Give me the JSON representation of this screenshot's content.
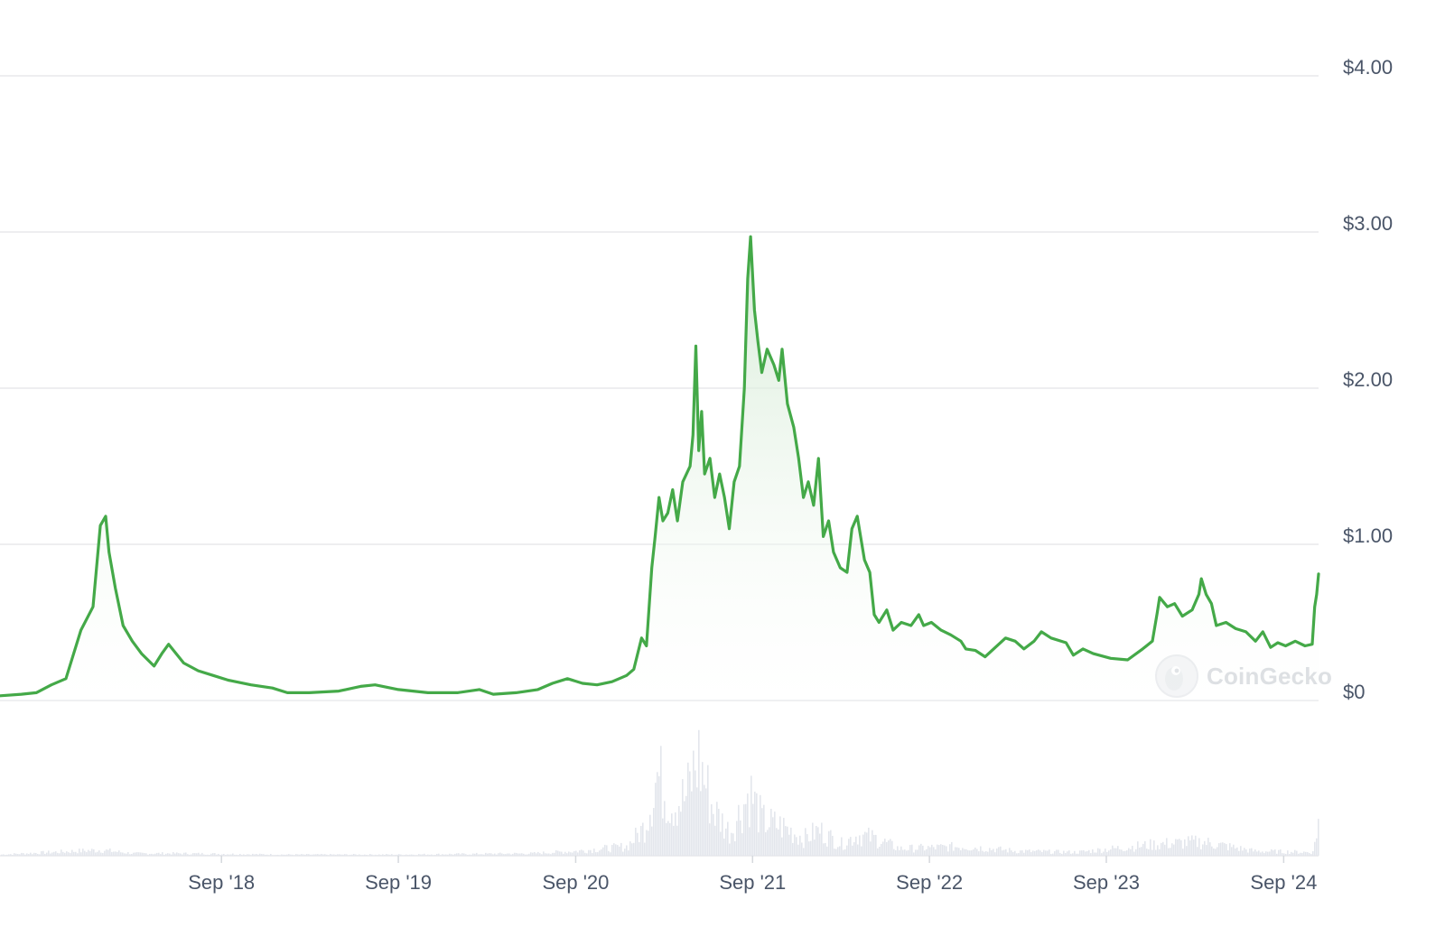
{
  "watermark": {
    "text": "CoinGecko"
  },
  "colors": {
    "line": "#44a948",
    "area_top": "#dff0df",
    "volume": "#e3e6ec",
    "grid": "#e8e9ec",
    "tick_text": "#4a5568"
  },
  "chart_data": {
    "type": "area",
    "y_axis": {
      "position": "right",
      "ticks": [
        "$0",
        "$1.00",
        "$2.00",
        "$3.00",
        "$4.00"
      ],
      "tick_values": [
        0,
        1,
        2,
        3,
        4
      ],
      "ylim": [
        0,
        4.05
      ]
    },
    "x_axis": {
      "ticks": [
        "Sep '18",
        "Sep '19",
        "Sep '20",
        "Sep '21",
        "Sep '22",
        "Sep '23",
        "Sep '24"
      ],
      "tick_dates": [
        "2018-09-01",
        "2019-09-01",
        "2020-09-01",
        "2021-09-01",
        "2022-09-01",
        "2023-09-01",
        "2024-09-01"
      ],
      "xlim": [
        "2017-06-01",
        "2024-11-12"
      ]
    },
    "grid": true,
    "series": [
      {
        "values": [
          [
            "2017-06-01",
            0.03
          ],
          [
            "2017-07-15",
            0.04
          ],
          [
            "2017-08-15",
            0.05
          ],
          [
            "2017-09-15",
            0.1
          ],
          [
            "2017-10-15",
            0.14
          ],
          [
            "2017-11-15",
            0.45
          ],
          [
            "2017-12-10",
            0.6
          ],
          [
            "2017-12-25",
            1.12
          ],
          [
            "2018-01-05",
            1.18
          ],
          [
            "2018-01-12",
            0.95
          ],
          [
            "2018-01-25",
            0.72
          ],
          [
            "2018-02-10",
            0.48
          ],
          [
            "2018-03-01",
            0.38
          ],
          [
            "2018-03-20",
            0.3
          ],
          [
            "2018-04-15",
            0.22
          ],
          [
            "2018-05-01",
            0.3
          ],
          [
            "2018-05-15",
            0.36
          ],
          [
            "2018-06-15",
            0.24
          ],
          [
            "2018-07-15",
            0.19
          ],
          [
            "2018-08-15",
            0.16
          ],
          [
            "2018-09-15",
            0.13
          ],
          [
            "2018-11-01",
            0.1
          ],
          [
            "2018-12-15",
            0.08
          ],
          [
            "2019-01-15",
            0.05
          ],
          [
            "2019-03-01",
            0.05
          ],
          [
            "2019-05-01",
            0.06
          ],
          [
            "2019-06-15",
            0.09
          ],
          [
            "2019-07-15",
            0.1
          ],
          [
            "2019-09-01",
            0.07
          ],
          [
            "2019-11-01",
            0.05
          ],
          [
            "2020-01-01",
            0.05
          ],
          [
            "2020-02-15",
            0.07
          ],
          [
            "2020-03-15",
            0.04
          ],
          [
            "2020-05-01",
            0.05
          ],
          [
            "2020-06-15",
            0.07
          ],
          [
            "2020-07-15",
            0.11
          ],
          [
            "2020-08-15",
            0.14
          ],
          [
            "2020-09-15",
            0.11
          ],
          [
            "2020-10-15",
            0.1
          ],
          [
            "2020-11-15",
            0.12
          ],
          [
            "2020-12-15",
            0.16
          ],
          [
            "2020-12-30",
            0.2
          ],
          [
            "2021-01-15",
            0.4
          ],
          [
            "2021-01-25",
            0.35
          ],
          [
            "2021-02-05",
            0.85
          ],
          [
            "2021-02-12",
            1.05
          ],
          [
            "2021-02-20",
            1.3
          ],
          [
            "2021-02-28",
            1.15
          ],
          [
            "2021-03-10",
            1.2
          ],
          [
            "2021-03-20",
            1.35
          ],
          [
            "2021-03-30",
            1.15
          ],
          [
            "2021-04-10",
            1.4
          ],
          [
            "2021-04-25",
            1.5
          ],
          [
            "2021-05-01",
            1.7
          ],
          [
            "2021-05-07",
            2.27
          ],
          [
            "2021-05-13",
            1.6
          ],
          [
            "2021-05-19",
            1.85
          ],
          [
            "2021-05-25",
            1.45
          ],
          [
            "2021-06-05",
            1.55
          ],
          [
            "2021-06-15",
            1.3
          ],
          [
            "2021-06-25",
            1.45
          ],
          [
            "2021-07-05",
            1.3
          ],
          [
            "2021-07-15",
            1.1
          ],
          [
            "2021-07-25",
            1.4
          ],
          [
            "2021-08-05",
            1.5
          ],
          [
            "2021-08-15",
            2.0
          ],
          [
            "2021-08-22",
            2.7
          ],
          [
            "2021-08-28",
            2.97
          ],
          [
            "2021-09-05",
            2.5
          ],
          [
            "2021-09-12",
            2.3
          ],
          [
            "2021-09-20",
            2.1
          ],
          [
            "2021-10-01",
            2.25
          ],
          [
            "2021-10-15",
            2.15
          ],
          [
            "2021-10-25",
            2.05
          ],
          [
            "2021-11-01",
            2.25
          ],
          [
            "2021-11-12",
            1.9
          ],
          [
            "2021-11-25",
            1.75
          ],
          [
            "2021-12-05",
            1.55
          ],
          [
            "2021-12-15",
            1.3
          ],
          [
            "2021-12-25",
            1.4
          ],
          [
            "2022-01-05",
            1.25
          ],
          [
            "2022-01-15",
            1.55
          ],
          [
            "2022-01-25",
            1.05
          ],
          [
            "2022-02-05",
            1.15
          ],
          [
            "2022-02-15",
            0.95
          ],
          [
            "2022-03-01",
            0.85
          ],
          [
            "2022-03-15",
            0.82
          ],
          [
            "2022-03-25",
            1.1
          ],
          [
            "2022-04-05",
            1.18
          ],
          [
            "2022-04-20",
            0.9
          ],
          [
            "2022-05-01",
            0.82
          ],
          [
            "2022-05-10",
            0.55
          ],
          [
            "2022-05-20",
            0.5
          ],
          [
            "2022-06-05",
            0.58
          ],
          [
            "2022-06-18",
            0.45
          ],
          [
            "2022-07-05",
            0.5
          ],
          [
            "2022-07-25",
            0.48
          ],
          [
            "2022-08-10",
            0.55
          ],
          [
            "2022-08-20",
            0.48
          ],
          [
            "2022-09-05",
            0.5
          ],
          [
            "2022-09-25",
            0.45
          ],
          [
            "2022-10-15",
            0.42
          ],
          [
            "2022-11-05",
            0.38
          ],
          [
            "2022-11-15",
            0.33
          ],
          [
            "2022-12-05",
            0.32
          ],
          [
            "2022-12-25",
            0.28
          ],
          [
            "2023-01-15",
            0.34
          ],
          [
            "2023-02-05",
            0.4
          ],
          [
            "2023-02-25",
            0.38
          ],
          [
            "2023-03-15",
            0.33
          ],
          [
            "2023-04-05",
            0.38
          ],
          [
            "2023-04-20",
            0.44
          ],
          [
            "2023-05-10",
            0.4
          ],
          [
            "2023-06-10",
            0.37
          ],
          [
            "2023-06-25",
            0.29
          ],
          [
            "2023-07-15",
            0.33
          ],
          [
            "2023-08-05",
            0.3
          ],
          [
            "2023-09-10",
            0.27
          ],
          [
            "2023-10-15",
            0.26
          ],
          [
            "2023-11-15",
            0.33
          ],
          [
            "2023-12-05",
            0.38
          ],
          [
            "2023-12-15",
            0.56
          ],
          [
            "2023-12-20",
            0.66
          ],
          [
            "2024-01-05",
            0.6
          ],
          [
            "2024-01-20",
            0.62
          ],
          [
            "2024-02-05",
            0.54
          ],
          [
            "2024-02-25",
            0.58
          ],
          [
            "2024-03-10",
            0.68
          ],
          [
            "2024-03-15",
            0.78
          ],
          [
            "2024-03-25",
            0.68
          ],
          [
            "2024-04-05",
            0.62
          ],
          [
            "2024-04-15",
            0.48
          ],
          [
            "2024-05-05",
            0.5
          ],
          [
            "2024-05-25",
            0.46
          ],
          [
            "2024-06-15",
            0.44
          ],
          [
            "2024-07-05",
            0.38
          ],
          [
            "2024-07-20",
            0.44
          ],
          [
            "2024-08-05",
            0.34
          ],
          [
            "2024-08-20",
            0.37
          ],
          [
            "2024-09-05",
            0.35
          ],
          [
            "2024-09-25",
            0.38
          ],
          [
            "2024-10-15",
            0.35
          ],
          [
            "2024-10-30",
            0.36
          ],
          [
            "2024-11-04",
            0.6
          ],
          [
            "2024-11-08",
            0.68
          ],
          [
            "2024-11-12",
            0.81
          ]
        ]
      }
    ],
    "volume": {
      "values": [
        [
          "2017-06-01",
          0.01
        ],
        [
          "2017-12-25",
          0.05
        ],
        [
          "2018-03-01",
          0.02
        ],
        [
          "2018-06-01",
          0.02
        ],
        [
          "2019-01-01",
          0.01
        ],
        [
          "2019-09-01",
          0.01
        ],
        [
          "2020-06-01",
          0.02
        ],
        [
          "2020-09-01",
          0.04
        ],
        [
          "2020-12-15",
          0.08
        ],
        [
          "2021-01-20",
          0.25
        ],
        [
          "2021-02-15",
          0.7
        ],
        [
          "2021-03-15",
          0.45
        ],
        [
          "2021-04-15",
          0.5
        ],
        [
          "2021-05-10",
          0.85
        ],
        [
          "2021-06-10",
          0.4
        ],
        [
          "2021-07-15",
          0.2
        ],
        [
          "2021-08-25",
          0.55
        ],
        [
          "2021-09-20",
          0.3
        ],
        [
          "2021-11-01",
          0.25
        ],
        [
          "2021-12-15",
          0.15
        ],
        [
          "2022-01-15",
          0.22
        ],
        [
          "2022-03-01",
          0.1
        ],
        [
          "2022-04-05",
          0.18
        ],
        [
          "2022-05-10",
          0.15
        ],
        [
          "2022-07-01",
          0.06
        ],
        [
          "2022-11-10",
          0.08
        ],
        [
          "2023-03-01",
          0.04
        ],
        [
          "2023-07-01",
          0.03
        ],
        [
          "2023-12-15",
          0.1
        ],
        [
          "2024-03-15",
          0.12
        ],
        [
          "2024-07-01",
          0.04
        ],
        [
          "2024-10-30",
          0.03
        ],
        [
          "2024-11-12",
          0.35
        ]
      ]
    }
  }
}
